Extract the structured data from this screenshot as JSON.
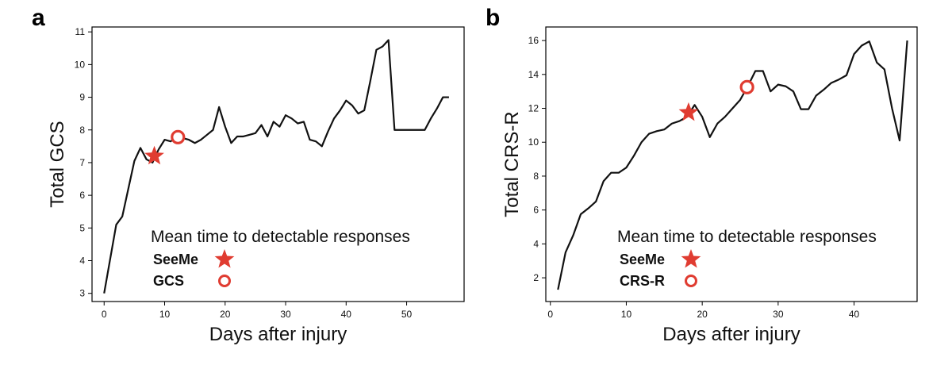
{
  "chart_data": [
    {
      "panel_label": "a",
      "type": "line",
      "title": "",
      "xlabel": "Days after injury",
      "ylabel": "Total GCS",
      "xlim": [
        -2,
        59.5
      ],
      "ylim": [
        2.75,
        11.15
      ],
      "xticks": [
        0,
        10,
        20,
        30,
        40,
        50
      ],
      "yticks": [
        3,
        4,
        5,
        6,
        7,
        8,
        9,
        10,
        11
      ],
      "grid": false,
      "line_color": "#111111",
      "series": [
        {
          "x": [
            0,
            2,
            3,
            4,
            5,
            6,
            7,
            8,
            9,
            10,
            11,
            12,
            13,
            14,
            15,
            16,
            17,
            18,
            19,
            20,
            21,
            22,
            23,
            24,
            25,
            26,
            27,
            28,
            29,
            30,
            31,
            32,
            33,
            34,
            35,
            36,
            37,
            38,
            39,
            40,
            41,
            42,
            43,
            44,
            45,
            46,
            47,
            48,
            49,
            50,
            51,
            52,
            53,
            54,
            55,
            56,
            57
          ],
          "y": [
            3.0,
            5.1,
            5.35,
            6.2,
            7.05,
            7.45,
            7.1,
            7.0,
            7.4,
            7.7,
            7.65,
            7.8,
            7.75,
            7.7,
            7.6,
            7.7,
            7.85,
            8.0,
            8.7,
            8.1,
            7.6,
            7.8,
            7.8,
            7.85,
            7.9,
            8.15,
            7.8,
            8.25,
            8.1,
            8.45,
            8.35,
            8.2,
            8.25,
            7.7,
            7.65,
            7.5,
            7.95,
            8.35,
            8.6,
            8.9,
            8.75,
            8.5,
            8.6,
            9.5,
            10.45,
            10.55,
            10.75,
            8.0,
            8.0,
            8.0,
            8.0,
            8.0,
            8.0,
            8.35,
            8.65,
            9.0,
            9.0
          ]
        }
      ],
      "markers": [
        {
          "name": "SeeMe",
          "shape": "star",
          "x": 8.3,
          "y": 7.2
        },
        {
          "name": "GCS",
          "shape": "circle",
          "x": 12.2,
          "y": 7.78
        }
      ],
      "legend": {
        "title": "Mean time to detectable responses",
        "placement": "lower-right",
        "items": [
          "SeeMe",
          "GCS"
        ]
      },
      "marker_color": "#e03c31"
    },
    {
      "panel_label": "b",
      "type": "line",
      "title": "",
      "xlabel": "Days after injury",
      "ylabel": "Total CRS-R",
      "xlim": [
        -0.6,
        48.3
      ],
      "ylim": [
        0.6,
        16.8
      ],
      "xticks": [
        0,
        10,
        20,
        30,
        40
      ],
      "yticks": [
        2,
        4,
        6,
        8,
        10,
        12,
        14,
        16
      ],
      "grid": false,
      "line_color": "#111111",
      "series": [
        {
          "x": [
            1,
            2,
            3,
            4,
            5,
            6,
            7,
            8,
            9,
            10,
            11,
            12,
            13,
            14,
            15,
            16,
            17,
            18,
            19,
            20,
            21,
            22,
            23,
            24,
            25,
            26,
            27,
            28,
            29,
            30,
            31,
            32,
            33,
            34,
            35,
            36,
            37,
            38,
            39,
            40,
            41,
            42,
            43,
            44,
            45,
            46,
            47
          ],
          "y": [
            1.3,
            3.5,
            4.5,
            5.75,
            6.1,
            6.5,
            7.7,
            8.2,
            8.2,
            8.5,
            9.2,
            10.0,
            10.5,
            10.65,
            10.75,
            11.1,
            11.25,
            11.5,
            12.2,
            11.5,
            10.3,
            11.1,
            11.5,
            12.0,
            12.5,
            13.3,
            14.2,
            14.2,
            13.0,
            13.4,
            13.3,
            13.0,
            11.95,
            11.95,
            12.75,
            13.1,
            13.5,
            13.7,
            13.95,
            15.2,
            15.7,
            15.95,
            14.7,
            14.3,
            12.0,
            10.1,
            16.0
          ]
        }
      ],
      "markers": [
        {
          "name": "SeeMe",
          "shape": "star",
          "x": 18.2,
          "y": 11.75
        },
        {
          "name": "CRS-R",
          "shape": "circle",
          "x": 25.9,
          "y": 13.25
        }
      ],
      "legend": {
        "title": "Mean time to detectable responses",
        "placement": "lower-right",
        "items": [
          "SeeMe",
          "CRS-R"
        ]
      },
      "marker_color": "#e03c31"
    }
  ]
}
